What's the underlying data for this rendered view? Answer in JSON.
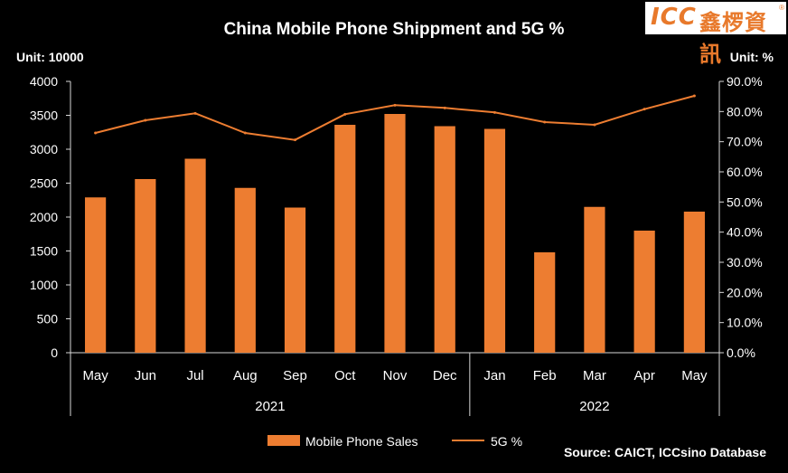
{
  "logo": {
    "brand": "ICC",
    "chinese": "鑫椤資訊",
    "registered": "®"
  },
  "source_note": "Source: CAICT, ICCsino Database",
  "colors": {
    "background": "#000000",
    "bar": "#ED7D31",
    "line": "#ED7D31",
    "text": "#FFFFFF"
  },
  "chart_data": {
    "type": "bar",
    "title": "China Mobile Phone Shippment and 5G %",
    "left_unit_label": "Unit: 10000",
    "right_unit_label": "Unit: %",
    "categories": [
      "May",
      "Jun",
      "Jul",
      "Aug",
      "Sep",
      "Oct",
      "Nov",
      "Dec",
      "Jan",
      "Feb",
      "Mar",
      "Apr",
      "May"
    ],
    "groups": [
      {
        "label": "2021",
        "categories": [
          "May",
          "Jun",
          "Jul",
          "Aug",
          "Sep",
          "Oct",
          "Nov",
          "Dec"
        ]
      },
      {
        "label": "2022",
        "categories": [
          "Jan",
          "Feb",
          "Mar",
          "Apr",
          "May"
        ]
      }
    ],
    "series": [
      {
        "name": "Mobile Phone Sales",
        "type": "bar",
        "axis": "left",
        "values": [
          2290,
          2560,
          2860,
          2430,
          2140,
          3360,
          3520,
          3340,
          3300,
          1480,
          2150,
          1800,
          2080
        ]
      },
      {
        "name": "5G %",
        "type": "line",
        "axis": "right",
        "values": [
          72.9,
          77.1,
          79.4,
          72.9,
          70.6,
          79.1,
          82.1,
          81.2,
          79.7,
          76.5,
          75.6,
          80.8,
          85.2
        ]
      }
    ],
    "y_left": {
      "min": 0,
      "max": 4000,
      "ticks": [
        "0",
        "500",
        "1000",
        "1500",
        "2000",
        "2500",
        "3000",
        "3500",
        "4000"
      ]
    },
    "y_right": {
      "min": 0,
      "max": 90,
      "ticks": [
        "0.0%",
        "10.0%",
        "20.0%",
        "30.0%",
        "40.0%",
        "50.0%",
        "60.0%",
        "70.0%",
        "80.0%",
        "90.0%"
      ]
    },
    "grid": false,
    "legend_position": "bottom"
  }
}
